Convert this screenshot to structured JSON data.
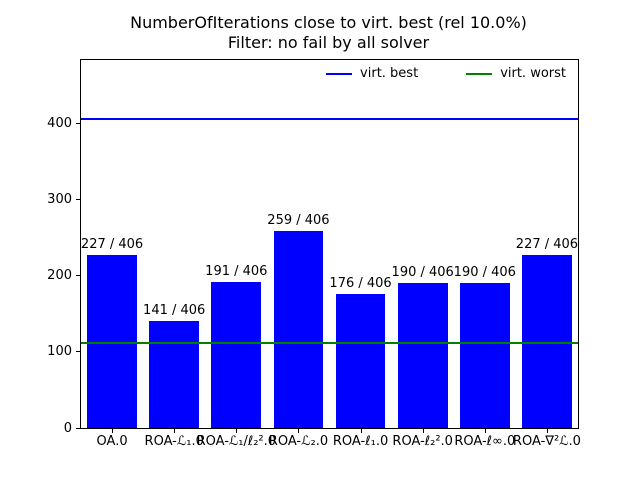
{
  "title": {
    "line1": "NumberOfIterations close to virt. best (rel 10.0%)",
    "line2": "Filter: no fail by all solver"
  },
  "legend": [
    {
      "label": "virt. best",
      "color": "#0000ff"
    },
    {
      "label": "virt. worst",
      "color": "#008000"
    }
  ],
  "chart_data": {
    "type": "bar",
    "title": "NumberOfIterations close to virt. best (rel 10.0%)\nFilter: no fail by all solver",
    "categories": [
      "OA.0",
      "ROA-ℒ₁.0",
      "ROA-ℒ₁/ℓ₂².0",
      "ROA-ℒ₂.0",
      "ROA-ℓ₁.0",
      "ROA-ℓ₂².0",
      "ROA-ℓ∞.0",
      "ROA-∇²ℒ.0"
    ],
    "values": [
      227,
      141,
      191,
      259,
      176,
      190,
      190,
      227
    ],
    "bar_labels": [
      "227 / 406",
      "141 / 406",
      "191 / 406",
      "259 / 406",
      "176 / 406",
      "190 / 406",
      "190 / 406",
      "227 / 406"
    ],
    "bar_color": "#0000ff",
    "bar_width_fraction": 0.8,
    "hlines": [
      {
        "name": "virt. best",
        "value": 406,
        "color": "#0000ff"
      },
      {
        "name": "virt. worst",
        "value": 112,
        "color": "#008000"
      }
    ],
    "xlabel": "",
    "ylabel": "",
    "yticks": [
      0,
      100,
      200,
      300,
      400
    ],
    "ylim": [
      0,
      483
    ],
    "grid": false,
    "legend_position": "upper right inside, horizontal"
  }
}
